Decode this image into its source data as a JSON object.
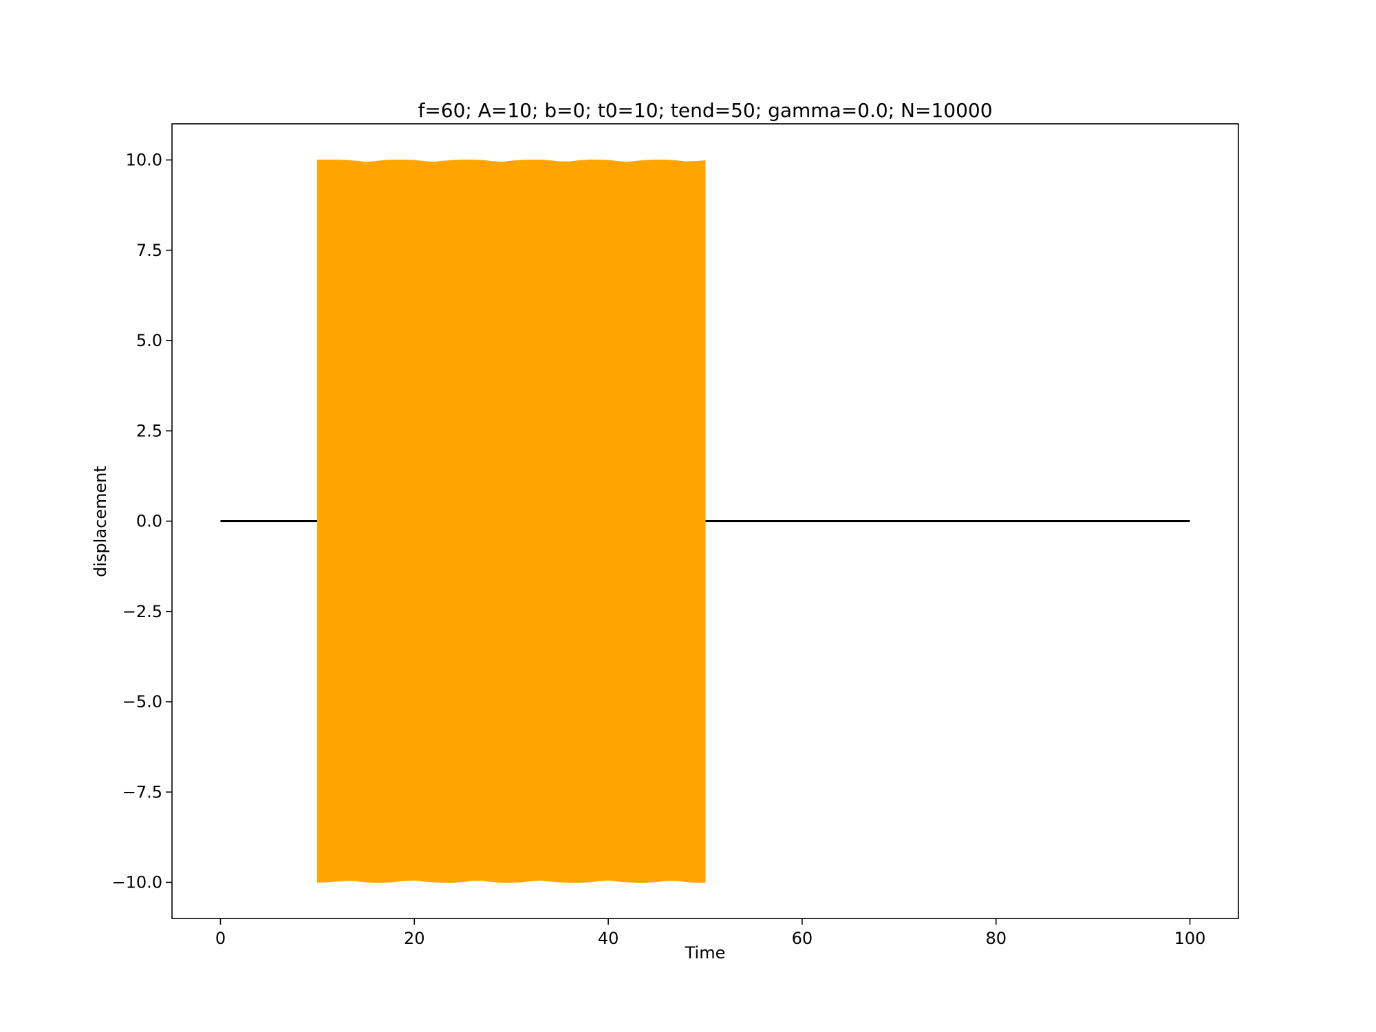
{
  "chart_data": {
    "type": "line",
    "title": "f=60; A=10; b=0; t0=10; tend=50; gamma=0.0; N=10000",
    "xlabel": "Time",
    "ylabel": "displacement",
    "xlim": [
      -5,
      105
    ],
    "ylim": [
      -11,
      11
    ],
    "grid": false,
    "legend": "none",
    "xticks": [
      0,
      20,
      40,
      60,
      80,
      100
    ],
    "xtick_labels": [
      "0",
      "20",
      "40",
      "60",
      "80",
      "100"
    ],
    "yticks": [
      10.0,
      7.5,
      5.0,
      2.5,
      0.0,
      -2.5,
      -5.0,
      -7.5,
      -10.0
    ],
    "ytick_labels": [
      "10.0",
      "7.5",
      "5.0",
      "2.5",
      "0.0",
      "−2.5",
      "−5.0",
      "−7.5",
      "−10.0"
    ],
    "series": [
      {
        "color": "#000000",
        "x": [
          0,
          10,
          50,
          100
        ],
        "y": [
          0,
          0,
          0,
          0
        ]
      },
      {
        "color": "#ffa500",
        "fill_between": true,
        "x": [
          10.0,
          11.0,
          12.0,
          13.0,
          14.0,
          15.0,
          16.0,
          17.0,
          18.0,
          19.0,
          20.0,
          21.0,
          22.0,
          23.0,
          24.0,
          25.0,
          26.0,
          27.0,
          28.0,
          29.0,
          30.0,
          31.0,
          32.0,
          33.0,
          34.0,
          35.0,
          36.0,
          37.0,
          38.0,
          39.0,
          40.0,
          41.0,
          42.0,
          43.0,
          44.0,
          45.0,
          46.0,
          47.0,
          48.0,
          49.0,
          50.0
        ],
        "y_upper": [
          10.0,
          10.0,
          10.0,
          9.99,
          9.97,
          9.94,
          9.96,
          9.99,
          10.0,
          10.0,
          9.99,
          9.96,
          9.94,
          9.97,
          9.99,
          10.0,
          10.0,
          9.99,
          9.96,
          9.94,
          9.97,
          9.99,
          10.0,
          10.0,
          9.98,
          9.95,
          9.95,
          9.98,
          10.0,
          10.0,
          9.99,
          9.96,
          9.94,
          9.97,
          9.99,
          10.0,
          10.0,
          9.98,
          9.95,
          9.96,
          9.98
        ],
        "y_lower": [
          -10.0,
          -9.99,
          -9.97,
          -9.95,
          -9.96,
          -9.99,
          -10.0,
          -10.0,
          -9.98,
          -9.95,
          -9.94,
          -9.97,
          -9.99,
          -10.0,
          -10.0,
          -9.98,
          -9.95,
          -9.95,
          -9.98,
          -10.0,
          -10.0,
          -9.99,
          -9.96,
          -9.94,
          -9.97,
          -9.99,
          -10.0,
          -10.0,
          -9.99,
          -9.96,
          -9.94,
          -9.97,
          -9.99,
          -10.0,
          -10.0,
          -9.98,
          -9.95,
          -9.95,
          -9.98,
          -10.0,
          -10.0
        ]
      }
    ]
  }
}
